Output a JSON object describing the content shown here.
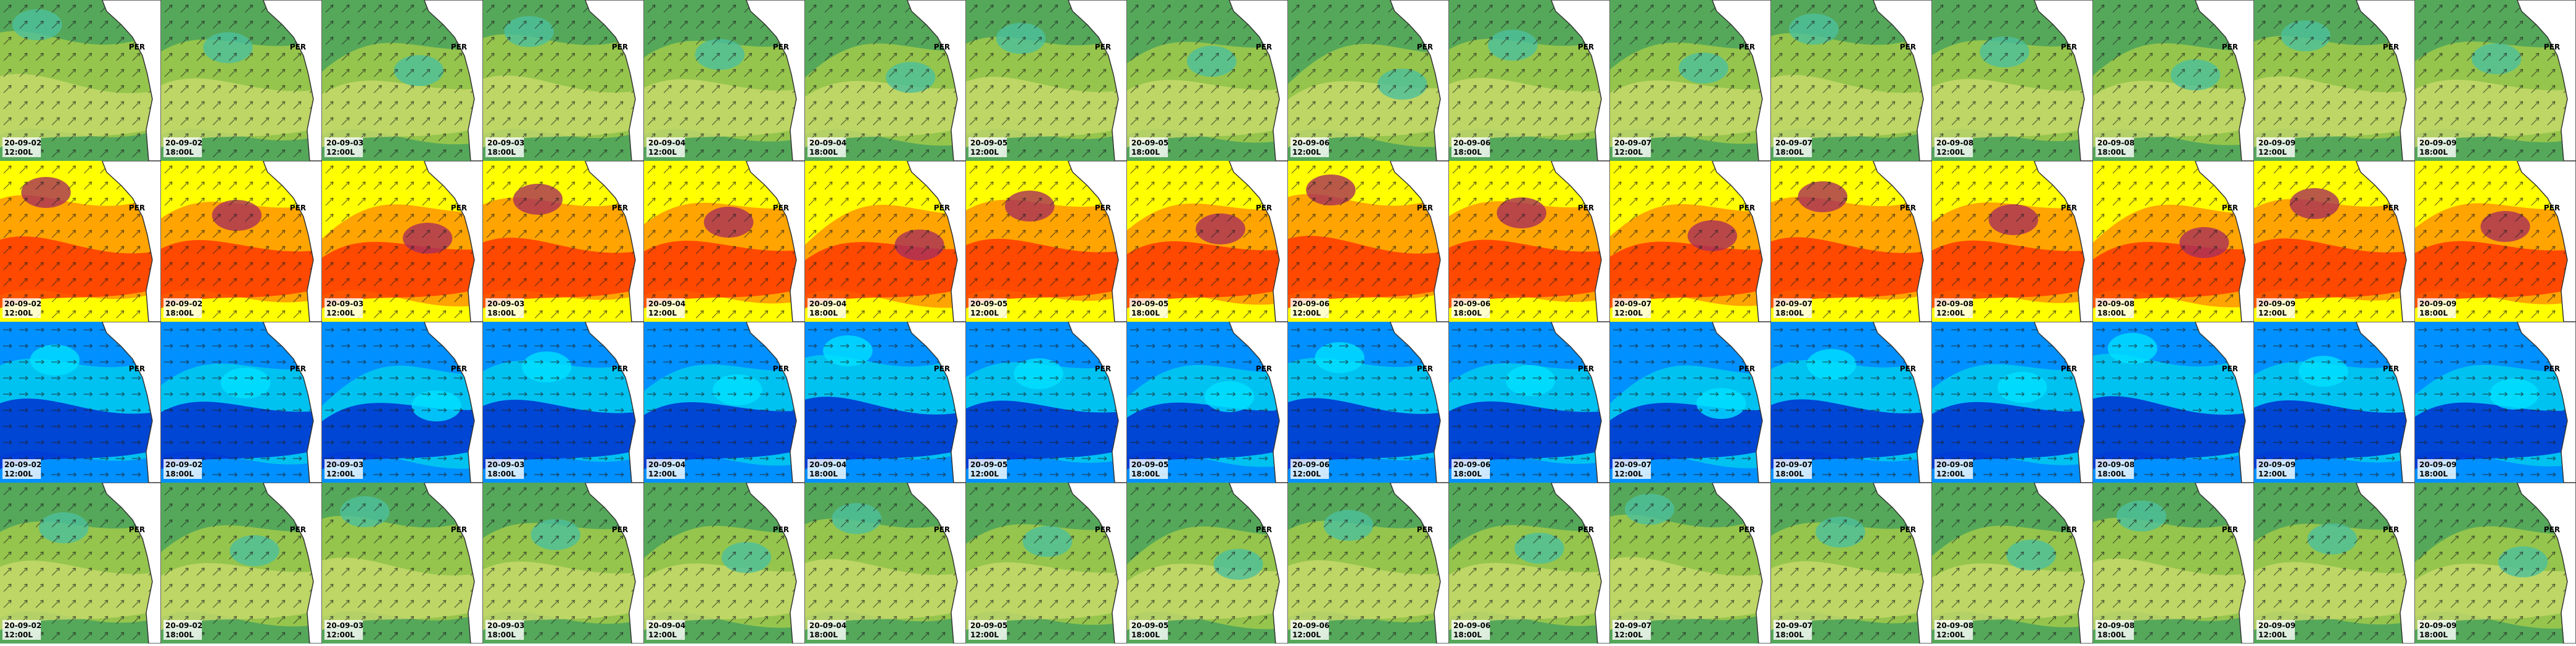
{
  "place_label": "PER",
  "timesteps": [
    {
      "date": "20-09-02",
      "time": "12:00L"
    },
    {
      "date": "20-09-02",
      "time": "18:00L"
    },
    {
      "date": "20-09-03",
      "time": "12:00L"
    },
    {
      "date": "20-09-03",
      "time": "18:00L"
    },
    {
      "date": "20-09-04",
      "time": "12:00L"
    },
    {
      "date": "20-09-04",
      "time": "18:00L"
    },
    {
      "date": "20-09-05",
      "time": "12:00L"
    },
    {
      "date": "20-09-05",
      "time": "18:00L"
    },
    {
      "date": "20-09-06",
      "time": "12:00L"
    },
    {
      "date": "20-09-06",
      "time": "18:00L"
    },
    {
      "date": "20-09-07",
      "time": "12:00L"
    },
    {
      "date": "20-09-07",
      "time": "18:00L"
    },
    {
      "date": "20-09-08",
      "time": "12:00L"
    },
    {
      "date": "20-09-08",
      "time": "18:00L"
    },
    {
      "date": "20-09-09",
      "time": "12:00L"
    },
    {
      "date": "20-09-09",
      "time": "18:00L"
    }
  ]
}
